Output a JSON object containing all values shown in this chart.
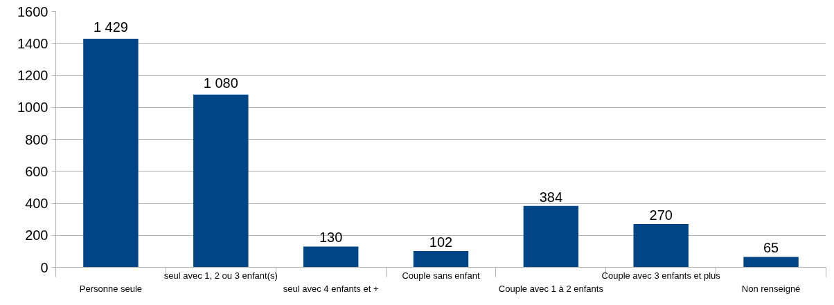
{
  "chart_data": {
    "type": "bar",
    "categories": [
      "Personne seule",
      "seul avec 1, 2 ou 3 enfant(s)",
      "seul avec 4 enfants et +",
      "Couple sans enfant",
      "Couple avec 1 à 2 enfants",
      "Couple avec 3 enfants et plus",
      "Non renseigné"
    ],
    "values": [
      1429,
      1080,
      130,
      102,
      384,
      270,
      65
    ],
    "value_labels": [
      "1 429",
      "1 080",
      "130",
      "102",
      "384",
      "270",
      "65"
    ],
    "color": "#004586",
    "ylim": [
      0,
      1600
    ],
    "yticks": [
      0,
      200,
      400,
      600,
      800,
      1000,
      1200,
      1400,
      1600
    ],
    "grid": "y"
  }
}
